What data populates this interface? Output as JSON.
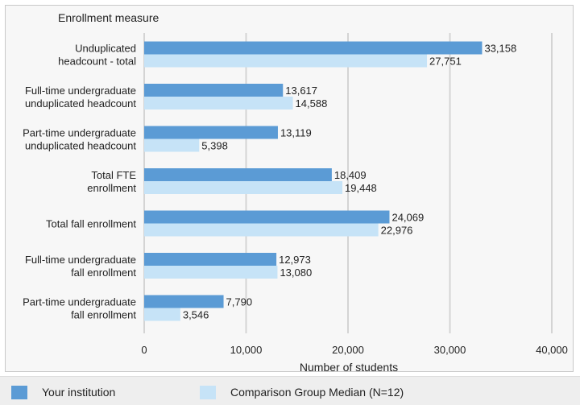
{
  "chart_data": {
    "type": "bar",
    "orientation": "horizontal",
    "title": "Enrollment measure",
    "xlabel": "Number of students",
    "xlim": [
      0,
      40000
    ],
    "xticks": [
      0,
      10000,
      20000,
      30000,
      40000
    ],
    "xtick_labels": [
      "0",
      "10,000",
      "20,000",
      "30,000",
      "40,000"
    ],
    "grid": "vertical",
    "categories": [
      [
        "Unduplicated",
        "headcount - total"
      ],
      [
        "Full-time undergraduate",
        "unduplicated headcount"
      ],
      [
        "Part-time undergraduate",
        "unduplicated headcount"
      ],
      [
        "Total FTE",
        "enrollment"
      ],
      [
        "Total fall enrollment"
      ],
      [
        "Full-time undergraduate",
        "fall enrollment"
      ],
      [
        "Part-time undergraduate",
        "fall enrollment"
      ]
    ],
    "series": [
      {
        "name": "Your institution",
        "color": "#5b9bd5",
        "values": [
          33158,
          13617,
          13119,
          18409,
          24069,
          12973,
          7790
        ],
        "labels": [
          "33,158",
          "13,617",
          "13,119",
          "18,409",
          "24,069",
          "12,973",
          "7,790"
        ]
      },
      {
        "name": "Comparison Group Median (N=12)",
        "color": "#c6e3f7",
        "values": [
          27751,
          14588,
          5398,
          19448,
          22976,
          13080,
          3546
        ],
        "labels": [
          "27,751",
          "14,588",
          "5,398",
          "19,448",
          "22,976",
          "13,080",
          "3,546"
        ]
      }
    ],
    "legend_position": "bottom"
  }
}
